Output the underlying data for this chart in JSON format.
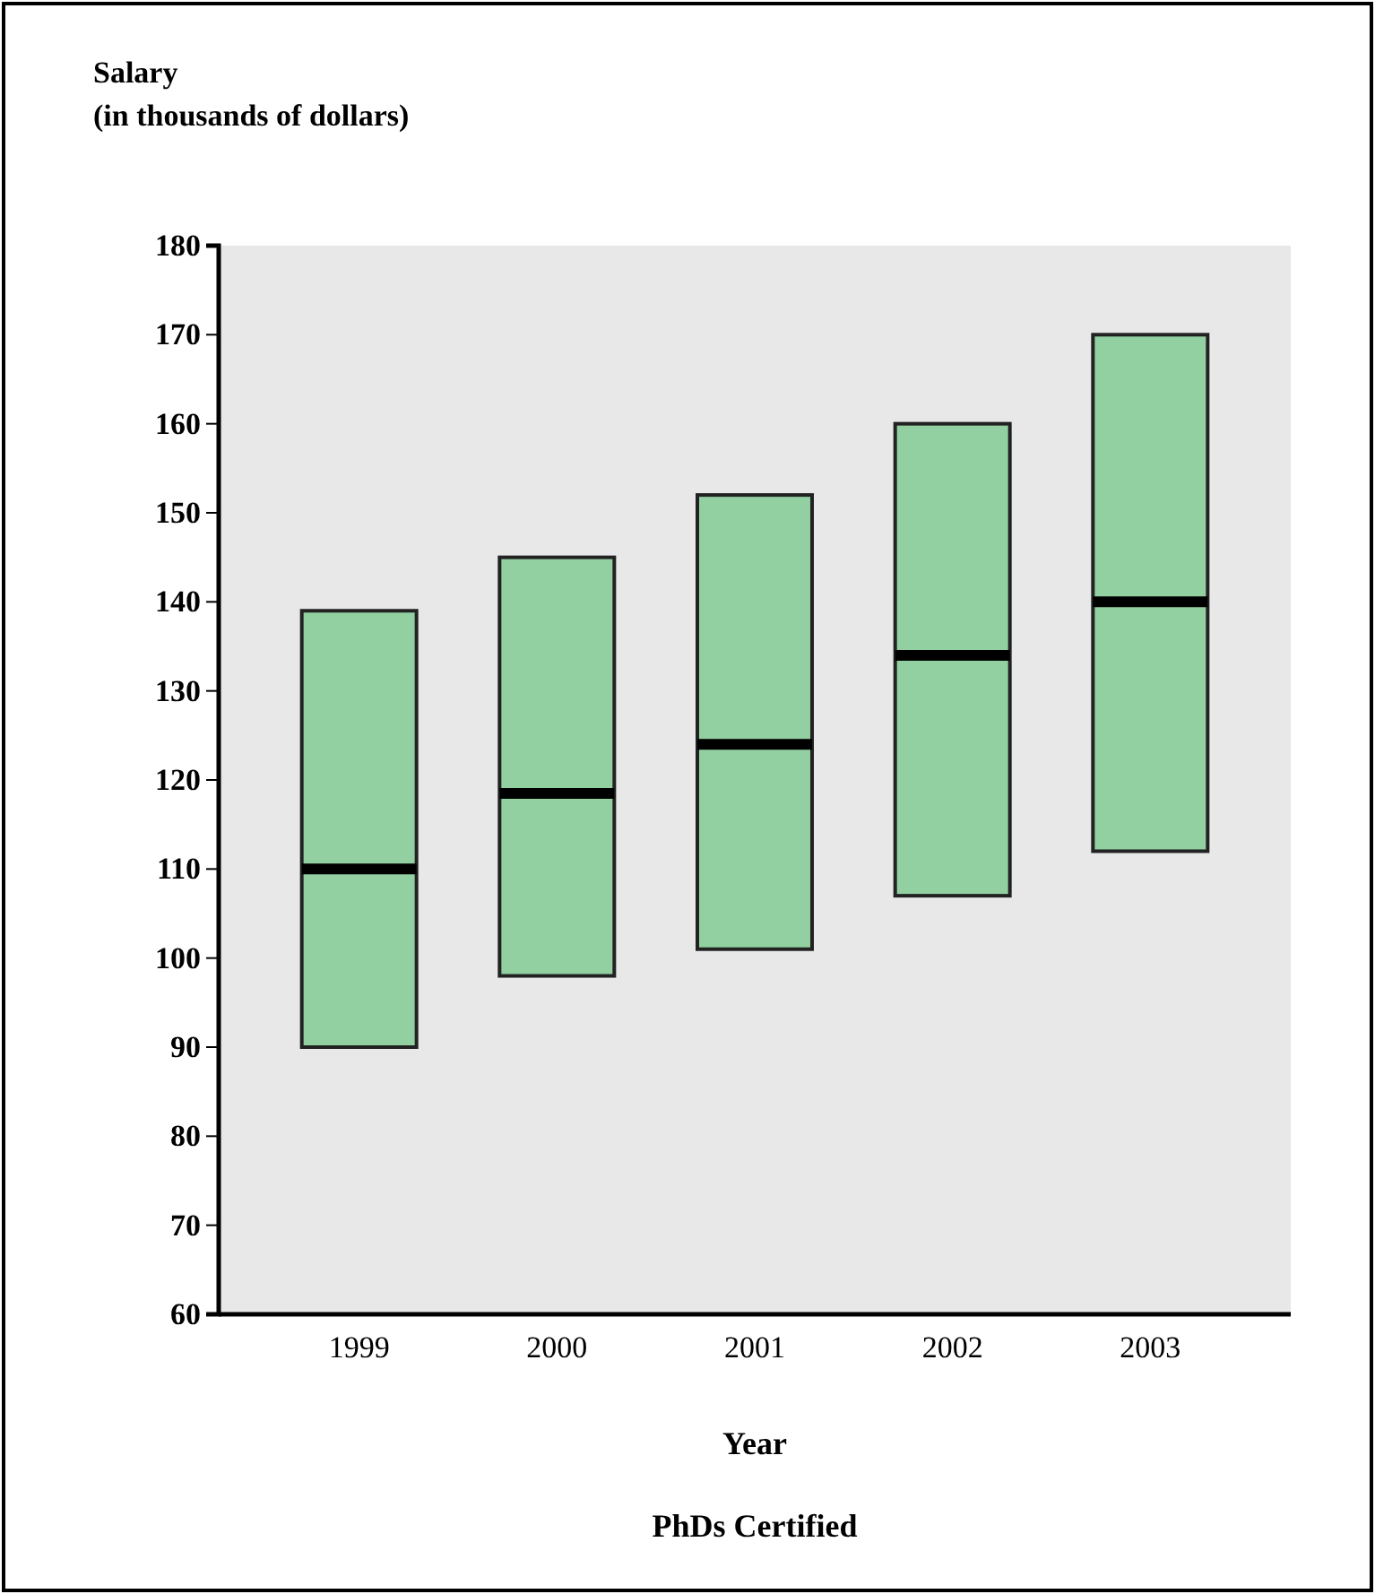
{
  "chart_data": {
    "type": "box",
    "title": "PhDs Certified",
    "xlabel": "Year",
    "ylabel": "Salary\n(in thousands of dollars)",
    "categories": [
      "1999",
      "2000",
      "2001",
      "2002",
      "2003"
    ],
    "boxes": [
      {
        "low": 90,
        "q1": 90,
        "median": 110,
        "q3": 139,
        "high": 139
      },
      {
        "low": 98,
        "q1": 98,
        "median": 118.5,
        "q3": 145,
        "high": 145
      },
      {
        "low": 101,
        "q1": 101,
        "median": 124,
        "q3": 152,
        "high": 152
      },
      {
        "low": 107,
        "q1": 107,
        "median": 134,
        "q3": 160,
        "high": 160
      },
      {
        "low": 112,
        "q1": 112,
        "median": 140,
        "q3": 170,
        "high": 170
      }
    ],
    "color": "#92d0a2",
    "ylim": [
      60,
      180
    ],
    "yticks": [
      60,
      70,
      80,
      90,
      100,
      110,
      120,
      130,
      140,
      150,
      160,
      170,
      180
    ],
    "grid": false
  }
}
